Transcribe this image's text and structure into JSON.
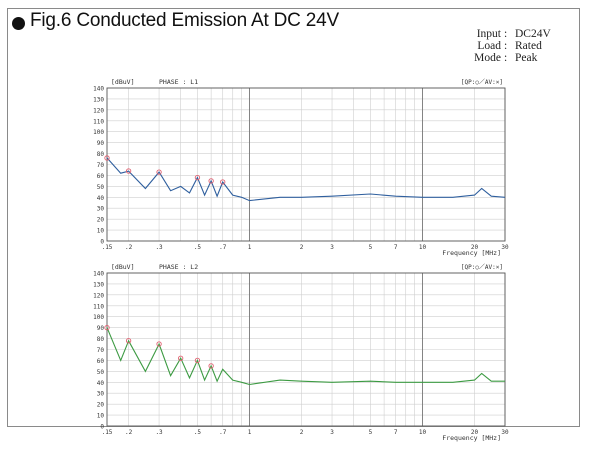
{
  "header": {
    "title": "Fig.6  Conducted Emission At DC 24V",
    "conditions": [
      {
        "label": "Input",
        "value": "DC24V"
      },
      {
        "label": "Load",
        "value": "Rated"
      },
      {
        "label": "Mode",
        "value": "Peak"
      }
    ]
  },
  "colors": {
    "l1_trace": "#2f5f9e",
    "l2_trace": "#3c9a42",
    "marker": "#e06070",
    "grid": "#cfcfcf"
  },
  "chart_data": [
    {
      "type": "line",
      "ylabel": "[dBuV]",
      "phase_label": "PHASE : L1",
      "legend": "[QP:○／AV:×]",
      "xlabel": "Frequency [MHz]",
      "xscale": "log",
      "xlim": [
        0.15,
        30
      ],
      "ylim": [
        0,
        140
      ],
      "x_tick_labels": [
        ".15",
        ".2",
        ".3",
        ".5",
        ".7",
        "1",
        "2",
        "3",
        "5",
        "7",
        "10",
        "20",
        "30"
      ],
      "y_tick_labels": [
        "0",
        "10",
        "20",
        "30",
        "40",
        "50",
        "60",
        "70",
        "80",
        "90",
        "100",
        "110",
        "120",
        "130",
        "140"
      ],
      "grid": true,
      "series": [
        {
          "points": [
            [
              0.15,
              76
            ],
            [
              0.18,
              62
            ],
            [
              0.2,
              64
            ],
            [
              0.25,
              48
            ],
            [
              0.3,
              63
            ],
            [
              0.35,
              46
            ],
            [
              0.4,
              50
            ],
            [
              0.45,
              44
            ],
            [
              0.5,
              58
            ],
            [
              0.55,
              42
            ],
            [
              0.6,
              55
            ],
            [
              0.65,
              41
            ],
            [
              0.7,
              54
            ],
            [
              0.8,
              42
            ],
            [
              0.9,
              40
            ],
            [
              1.0,
              37
            ],
            [
              1.5,
              40
            ],
            [
              2,
              40
            ],
            [
              3,
              41
            ],
            [
              5,
              43
            ],
            [
              7,
              41
            ],
            [
              10,
              40
            ],
            [
              15,
              40
            ],
            [
              20,
              42
            ],
            [
              22,
              48
            ],
            [
              25,
              41
            ],
            [
              30,
              40
            ]
          ]
        }
      ],
      "markers": [
        {
          "x": 0.15,
          "y": 76
        },
        {
          "x": 0.2,
          "y": 64
        },
        {
          "x": 0.3,
          "y": 63
        },
        {
          "x": 0.5,
          "y": 58
        },
        {
          "x": 0.6,
          "y": 55
        },
        {
          "x": 0.7,
          "y": 54
        }
      ]
    },
    {
      "type": "line",
      "ylabel": "[dBuV]",
      "phase_label": "PHASE : L2",
      "legend": "[QP:○／AV:×]",
      "xlabel": "Frequency [MHz]",
      "xscale": "log",
      "xlim": [
        0.15,
        30
      ],
      "ylim": [
        0,
        140
      ],
      "x_tick_labels": [
        ".15",
        ".2",
        ".3",
        ".5",
        ".7",
        "1",
        "2",
        "3",
        "5",
        "7",
        "10",
        "20",
        "30"
      ],
      "y_tick_labels": [
        "0",
        "10",
        "20",
        "30",
        "40",
        "50",
        "60",
        "70",
        "80",
        "90",
        "100",
        "110",
        "120",
        "130",
        "140"
      ],
      "grid": true,
      "series": [
        {
          "points": [
            [
              0.15,
              90
            ],
            [
              0.18,
              60
            ],
            [
              0.2,
              78
            ],
            [
              0.25,
              50
            ],
            [
              0.3,
              75
            ],
            [
              0.35,
              46
            ],
            [
              0.4,
              62
            ],
            [
              0.45,
              44
            ],
            [
              0.5,
              60
            ],
            [
              0.55,
              42
            ],
            [
              0.6,
              55
            ],
            [
              0.65,
              41
            ],
            [
              0.7,
              52
            ],
            [
              0.8,
              42
            ],
            [
              0.9,
              40
            ],
            [
              1.0,
              38
            ],
            [
              1.5,
              42
            ],
            [
              2,
              41
            ],
            [
              3,
              40
            ],
            [
              5,
              41
            ],
            [
              7,
              40
            ],
            [
              10,
              40
            ],
            [
              15,
              40
            ],
            [
              20,
              42
            ],
            [
              22,
              48
            ],
            [
              25,
              41
            ],
            [
              30,
              41
            ]
          ]
        }
      ],
      "markers": [
        {
          "x": 0.15,
          "y": 90
        },
        {
          "x": 0.2,
          "y": 78
        },
        {
          "x": 0.3,
          "y": 75
        },
        {
          "x": 0.4,
          "y": 62
        },
        {
          "x": 0.5,
          "y": 60
        },
        {
          "x": 0.6,
          "y": 55
        }
      ]
    }
  ]
}
